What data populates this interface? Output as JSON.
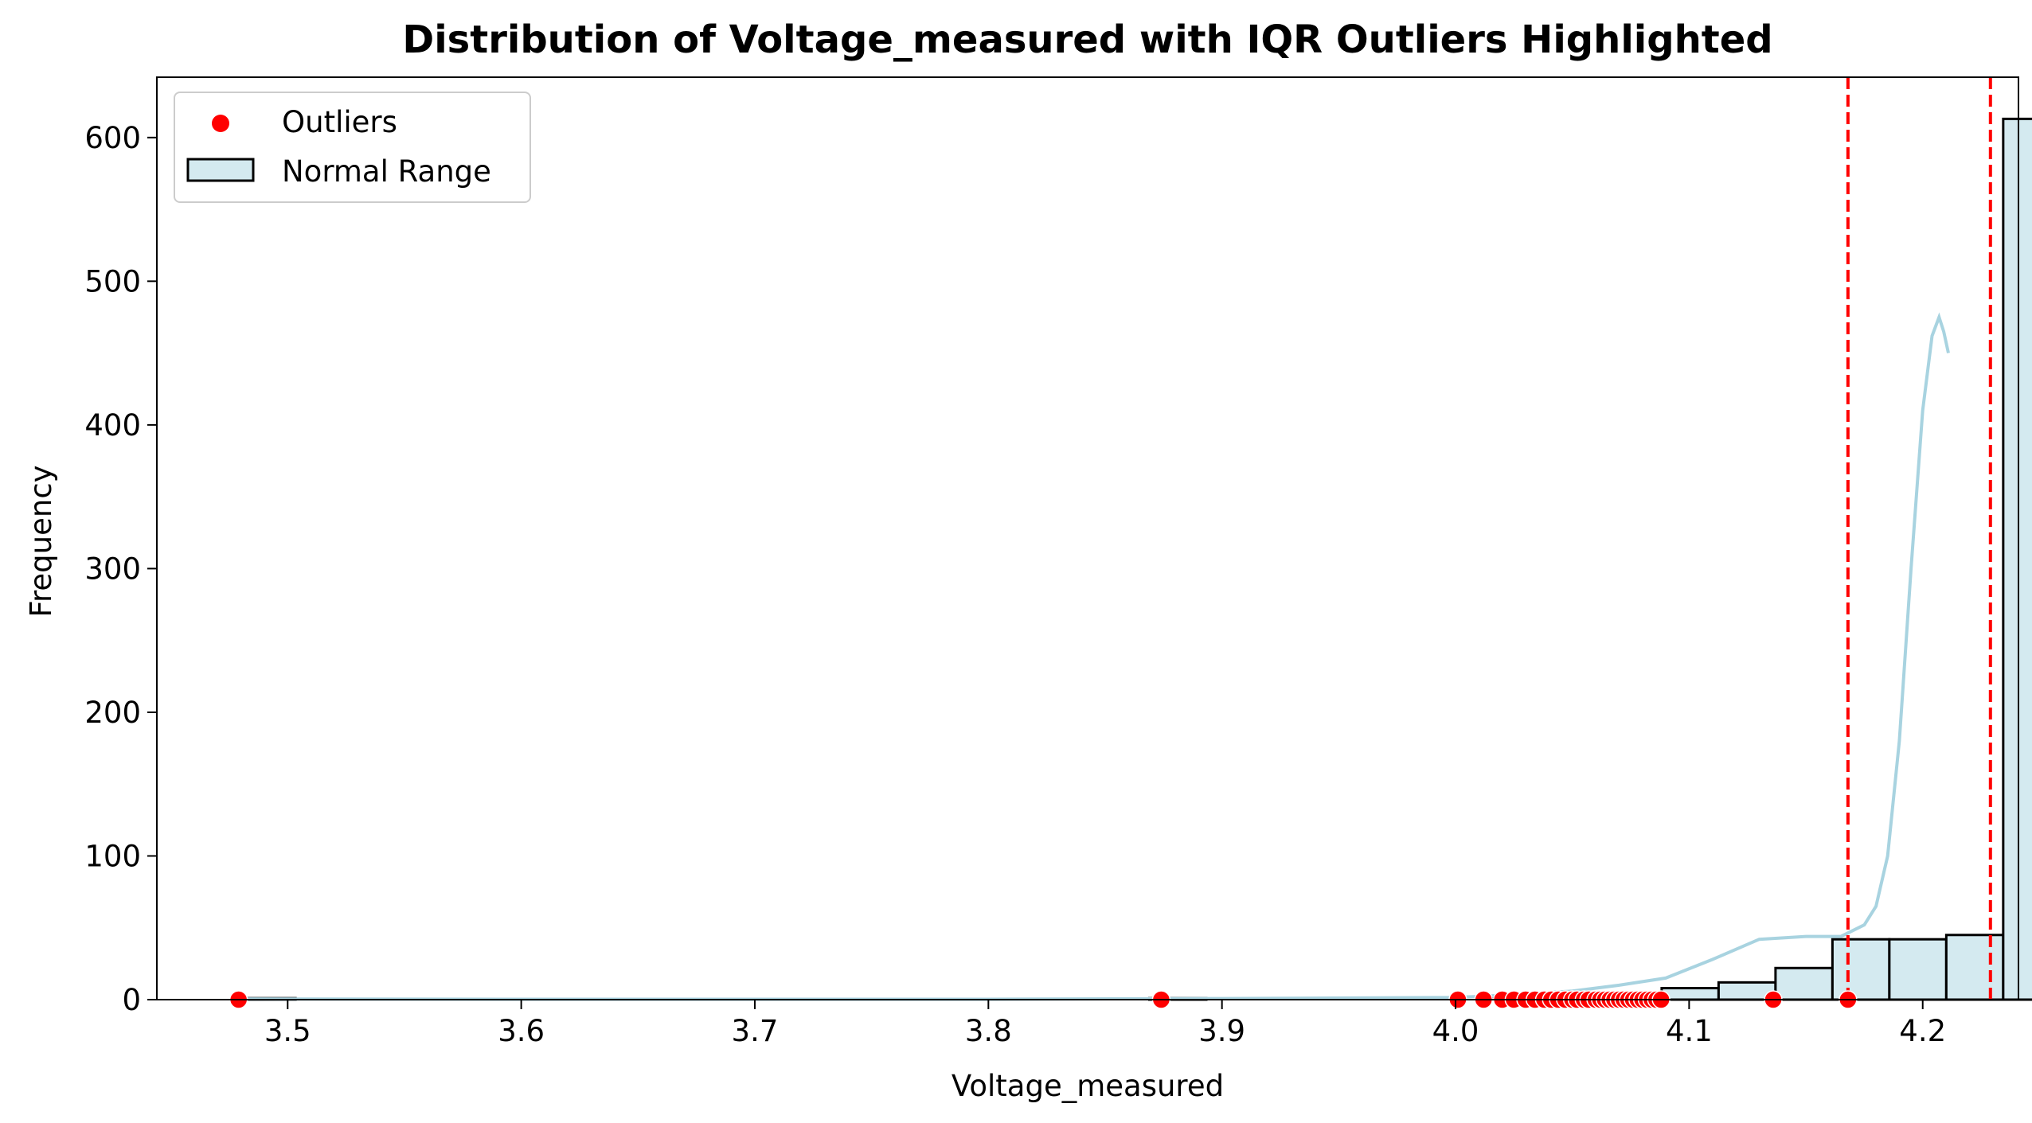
{
  "chart_data": {
    "type": "bar",
    "title": "Distribution of Voltage_measured with IQR Outliers Highlighted",
    "xlabel": "Voltage_measured",
    "ylabel": "Frequency",
    "xlim": [
      3.444,
      4.241
    ],
    "ylim": [
      0,
      642
    ],
    "xticks": [
      3.5,
      3.6,
      3.7,
      3.8,
      3.9,
      4.0,
      4.1,
      4.2
    ],
    "yticks": [
      0,
      100,
      200,
      300,
      400,
      500,
      600
    ],
    "histogram": {
      "name": "Normal Range",
      "fill": "#d4eaf0",
      "edge": "#000000",
      "bin_start": 3.479,
      "bin_width": 0.02437,
      "counts": [
        1,
        0,
        0,
        0,
        0,
        0,
        0,
        0,
        0,
        0,
        0,
        0,
        0,
        0,
        0,
        0,
        1,
        0,
        0,
        0,
        0,
        0,
        2,
        3,
        5,
        8,
        12,
        22,
        42,
        42,
        45,
        613
      ]
    },
    "kde": {
      "color": "#a8d3e0",
      "points": [
        [
          3.479,
          0.5
        ],
        [
          3.6,
          0.3
        ],
        [
          3.8,
          0.3
        ],
        [
          3.9,
          0.8
        ],
        [
          4.0,
          1.5
        ],
        [
          4.02,
          3
        ],
        [
          4.05,
          6
        ],
        [
          4.07,
          10
        ],
        [
          4.09,
          15
        ],
        [
          4.11,
          28
        ],
        [
          4.13,
          42
        ],
        [
          4.15,
          44
        ],
        [
          4.165,
          44
        ],
        [
          4.175,
          52
        ],
        [
          4.18,
          65
        ],
        [
          4.185,
          100
        ],
        [
          4.19,
          180
        ],
        [
          4.195,
          300
        ],
        [
          4.2,
          410
        ],
        [
          4.204,
          462
        ],
        [
          4.207,
          475
        ],
        [
          4.209,
          465
        ],
        [
          4.211,
          450
        ]
      ]
    },
    "outliers": {
      "name": "Outliers",
      "color": "#ff0000",
      "x": [
        3.479,
        3.874,
        4.001,
        4.012,
        4.02,
        4.025,
        4.03,
        4.034,
        4.038,
        4.041,
        4.044,
        4.047,
        4.05,
        4.052,
        4.055,
        4.057,
        4.06,
        4.062,
        4.064,
        4.066,
        4.068,
        4.07,
        4.072,
        4.074,
        4.076,
        4.078,
        4.08,
        4.082,
        4.084,
        4.086,
        4.088,
        4.136,
        4.168
      ],
      "y": 0
    },
    "iqr_bounds": {
      "color": "#ff0000",
      "lower": 4.168,
      "upper": 4.229
    },
    "legend": {
      "placement": "top-left",
      "entries": [
        "Outliers",
        "Normal Range"
      ]
    }
  }
}
